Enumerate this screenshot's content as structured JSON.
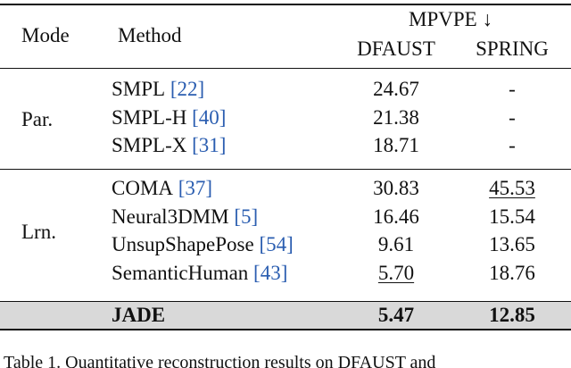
{
  "table": {
    "header": {
      "mode": "Mode",
      "method": "Method",
      "metric": "MPVPE ↓",
      "columns": [
        "DFAUST",
        "SPRING"
      ]
    },
    "groups": [
      {
        "label": "Par.",
        "rows": [
          {
            "method": "SMPL",
            "ref": "[22]",
            "values": [
              "24.67",
              "-"
            ]
          },
          {
            "method": "SMPL-H",
            "ref": "[40]",
            "values": [
              "21.38",
              "-"
            ]
          },
          {
            "method": "SMPL-X",
            "ref": "[31]",
            "values": [
              "18.71",
              "-"
            ]
          }
        ]
      },
      {
        "label": "Lrn.",
        "rows": [
          {
            "method": "COMA",
            "ref": "[37]",
            "values": [
              "30.83",
              "45.53"
            ]
          },
          {
            "method": "Neural3DMM",
            "ref": "[5]",
            "values": [
              "16.46",
              "15.54"
            ]
          },
          {
            "method": "UnsupShapePose",
            "ref": "[54]",
            "values": [
              "9.61",
              "13.65"
            ]
          },
          {
            "method": "SemanticHuman",
            "ref": "[43]",
            "values": [
              "5.70",
              "18.76"
            ]
          }
        ]
      }
    ],
    "ours": {
      "method": "JADE",
      "values": [
        "5.47",
        "12.85"
      ]
    }
  },
  "caption": "Table 1.   Quantitative reconstruction results on DFAUST and"
}
